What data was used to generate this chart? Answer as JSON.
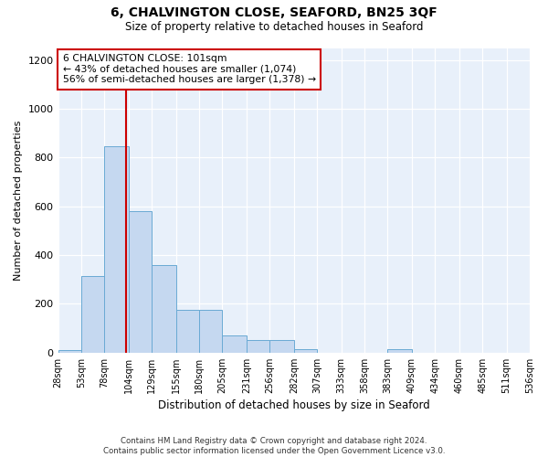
{
  "title": "6, CHALVINGTON CLOSE, SEAFORD, BN25 3QF",
  "subtitle": "Size of property relative to detached houses in Seaford",
  "xlabel": "Distribution of detached houses by size in Seaford",
  "ylabel": "Number of detached properties",
  "bar_color": "#c5d8f0",
  "bar_edge_color": "#6aaad4",
  "background_color": "#e8f0fa",
  "annotation_text": "6 CHALVINGTON CLOSE: 101sqm\n← 43% of detached houses are smaller (1,074)\n56% of semi-detached houses are larger (1,378) →",
  "annotation_box_color": "#ffffff",
  "annotation_box_edge_color": "#cc0000",
  "vline_value": 101,
  "vline_color": "#cc0000",
  "footer_text": "Contains HM Land Registry data © Crown copyright and database right 2024.\nContains public sector information licensed under the Open Government Licence v3.0.",
  "bin_edges": [
    28,
    53,
    78,
    104,
    129,
    155,
    180,
    205,
    231,
    256,
    282,
    307,
    333,
    358,
    383,
    409,
    434,
    460,
    485,
    511,
    536
  ],
  "bar_heights": [
    10,
    315,
    845,
    580,
    360,
    175,
    175,
    70,
    50,
    50,
    15,
    0,
    0,
    0,
    15,
    0,
    0,
    0,
    0,
    0
  ],
  "ylim": [
    0,
    1250
  ],
  "yticks": [
    0,
    200,
    400,
    600,
    800,
    1000,
    1200
  ]
}
